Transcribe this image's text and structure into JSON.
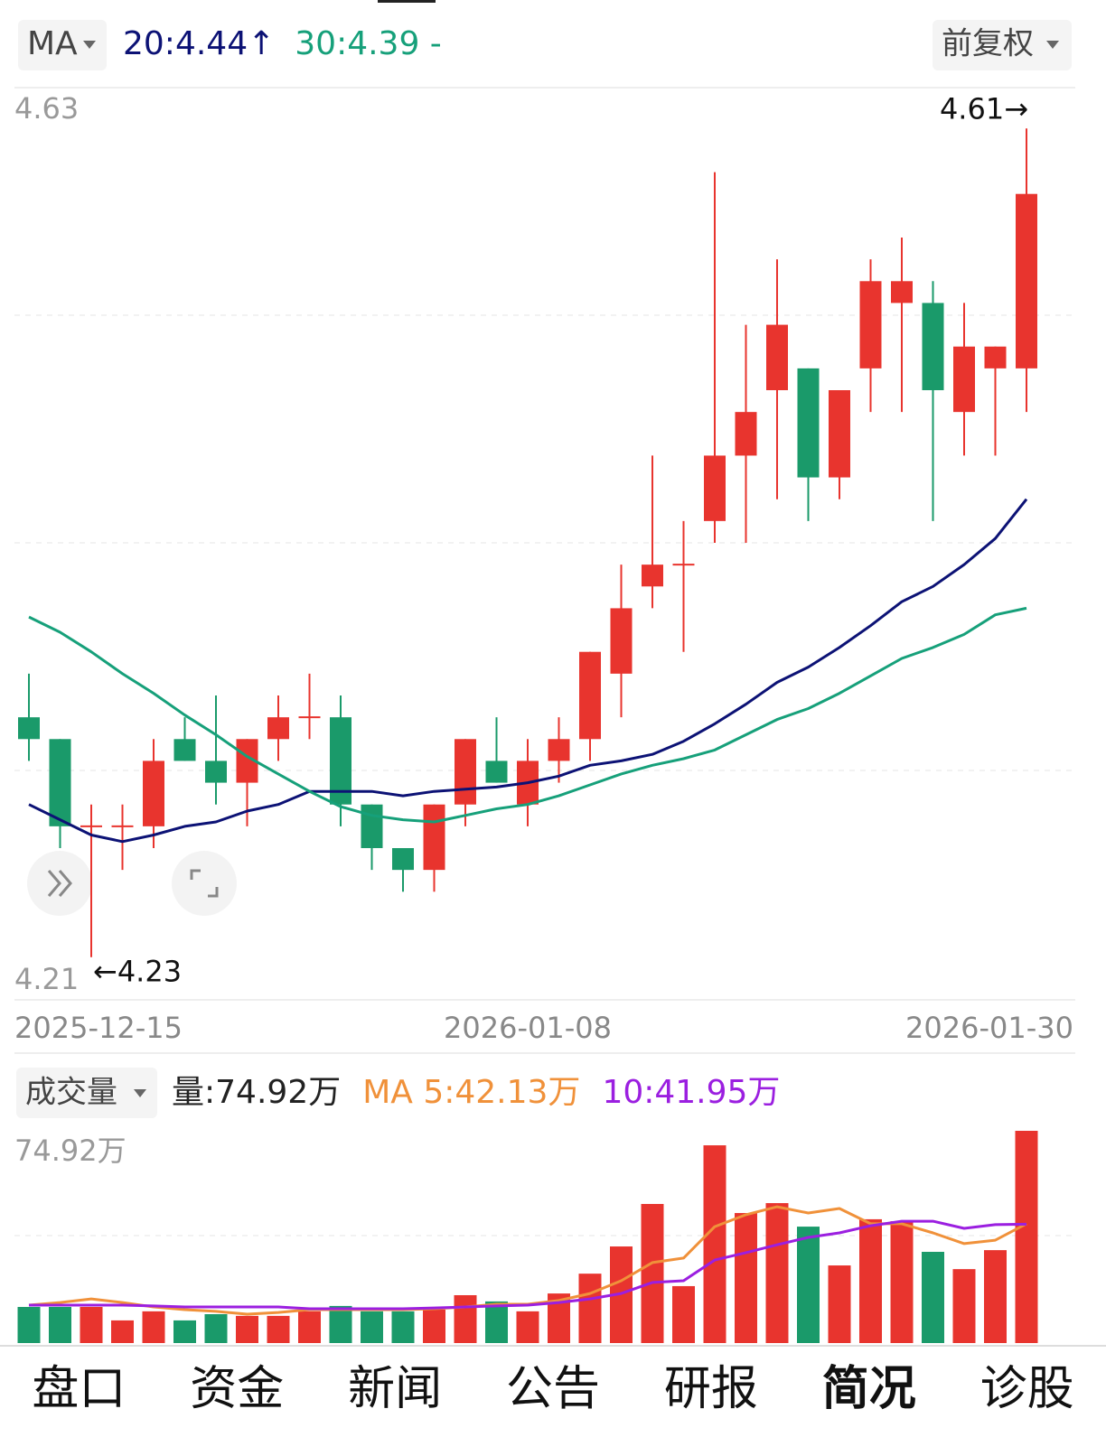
{
  "header": {
    "indicator": "MA",
    "adjust": "前复权"
  },
  "chart_data": [
    {
      "type": "candlestick",
      "categories": [
        "2025-12-15",
        null,
        null,
        null,
        null,
        null,
        null,
        null,
        null,
        null,
        null,
        null,
        null,
        null,
        null,
        null,
        "2026-01-08",
        null,
        null,
        null,
        null,
        null,
        null,
        null,
        null,
        null,
        null,
        null,
        null,
        null,
        null,
        null,
        "2026-01-30"
      ],
      "open": [
        4.34,
        4.33,
        4.29,
        4.29,
        4.29,
        4.33,
        4.32,
        4.31,
        4.33,
        4.34,
        4.34,
        4.3,
        4.28,
        4.27,
        4.3,
        4.32,
        4.3,
        4.32,
        4.33,
        4.36,
        4.4,
        4.41,
        4.43,
        4.46,
        4.49,
        4.5,
        4.45,
        4.5,
        4.53,
        4.53,
        4.48,
        4.5,
        4.5
      ],
      "close": [
        4.33,
        4.29,
        4.29,
        4.29,
        4.32,
        4.32,
        4.31,
        4.33,
        4.34,
        4.34,
        4.3,
        4.28,
        4.27,
        4.3,
        4.33,
        4.31,
        4.32,
        4.33,
        4.37,
        4.39,
        4.41,
        4.41,
        4.46,
        4.48,
        4.52,
        4.45,
        4.49,
        4.54,
        4.54,
        4.49,
        4.51,
        4.51,
        4.58
      ],
      "high": [
        4.36,
        4.33,
        4.3,
        4.3,
        4.33,
        4.34,
        4.35,
        4.33,
        4.35,
        4.36,
        4.35,
        4.3,
        4.28,
        4.3,
        4.33,
        4.34,
        4.33,
        4.34,
        4.37,
        4.41,
        4.46,
        4.43,
        4.59,
        4.52,
        4.55,
        4.5,
        4.49,
        4.55,
        4.56,
        4.54,
        4.53,
        4.51,
        4.61
      ],
      "low": [
        4.32,
        4.28,
        4.23,
        4.27,
        4.28,
        4.32,
        4.3,
        4.29,
        4.32,
        4.33,
        4.29,
        4.27,
        4.26,
        4.26,
        4.29,
        4.31,
        4.29,
        4.31,
        4.32,
        4.34,
        4.39,
        4.37,
        4.42,
        4.42,
        4.44,
        4.43,
        4.44,
        4.48,
        4.48,
        4.43,
        4.46,
        4.46,
        4.48
      ],
      "up_color": "#e8342e",
      "down_color": "#1a9a6a",
      "ylim": [
        4.21,
        4.63
      ],
      "yticks": [
        4.21,
        4.63
      ],
      "high_label": "4.61→",
      "low_label": "←4.23",
      "series": [
        {
          "name": "20:4.44↑",
          "color": "#0c1275",
          "values": [
            4.3,
            4.293,
            4.286,
            4.283,
            4.286,
            4.29,
            4.292,
            4.297,
            4.3,
            4.306,
            4.306,
            4.306,
            4.304,
            4.306,
            4.307,
            4.308,
            4.31,
            4.313,
            4.318,
            4.32,
            4.323,
            4.329,
            4.337,
            4.346,
            4.356,
            4.363,
            4.372,
            4.382,
            4.393,
            4.4,
            4.41,
            4.422,
            4.44
          ]
        },
        {
          "name": "30:4.39 -",
          "color": "#16a07a",
          "values": [
            4.386,
            4.379,
            4.37,
            4.36,
            4.351,
            4.341,
            4.332,
            4.322,
            4.314,
            4.306,
            4.299,
            4.295,
            4.293,
            4.292,
            4.295,
            4.298,
            4.3,
            4.304,
            4.309,
            4.314,
            4.318,
            4.321,
            4.325,
            4.332,
            4.339,
            4.344,
            4.351,
            4.359,
            4.367,
            4.372,
            4.378,
            4.387,
            4.39
          ]
        }
      ]
    },
    {
      "type": "bar",
      "title": "成交量",
      "ylim": [
        0,
        74.92
      ],
      "yticks": [
        {
          "value": 74.92,
          "label": "74.92万"
        }
      ],
      "series": [
        {
          "name": "量:74.92万",
          "color": "#222222",
          "values": [
            12.75,
            12.75,
            12.75,
            8.0,
            11.2,
            8.0,
            10.2,
            9.6,
            9.6,
            11.2,
            13.1,
            11.2,
            11.2,
            11.8,
            16.9,
            14.7,
            11.2,
            17.5,
            24.5,
            34.1,
            49.1,
            20.1,
            69.8,
            45.9,
            49.4,
            41.1,
            27.4,
            43.7,
            43.0,
            32.2,
            26.1,
            32.8,
            74.92
          ]
        },
        {
          "name": "MA 5:42.13万",
          "color": "#f0913a",
          "values": [
            13.4,
            14.3,
            15.6,
            14.3,
            12.75,
            11.8,
            11.2,
            10.2,
            10.8,
            11.8,
            11.8,
            11.8,
            11.8,
            12.1,
            12.75,
            13.7,
            13.7,
            15.0,
            17.5,
            22.0,
            28.4,
            30.0,
            41.1,
            45.3,
            48.1,
            45.9,
            47.5,
            42.1,
            42.1,
            38.9,
            35.1,
            36.3,
            42.13
          ]
        },
        {
          "name": "10:41.95万",
          "color": "#9b1fe0",
          "values": [
            13.4,
            13.4,
            13.4,
            13.4,
            13.1,
            12.75,
            12.75,
            12.75,
            12.75,
            12.1,
            12.1,
            12.1,
            12.1,
            12.4,
            12.75,
            13.1,
            13.4,
            14.3,
            15.6,
            17.5,
            21.4,
            22.0,
            29.3,
            31.9,
            34.7,
            37.3,
            38.9,
            41.4,
            43.0,
            43.0,
            40.5,
            41.8,
            41.95
          ]
        }
      ]
    }
  ],
  "tabs": [
    "盘口",
    "资金",
    "新闻",
    "公告",
    "研报",
    "简况",
    "诊股"
  ],
  "active_tab": 5
}
